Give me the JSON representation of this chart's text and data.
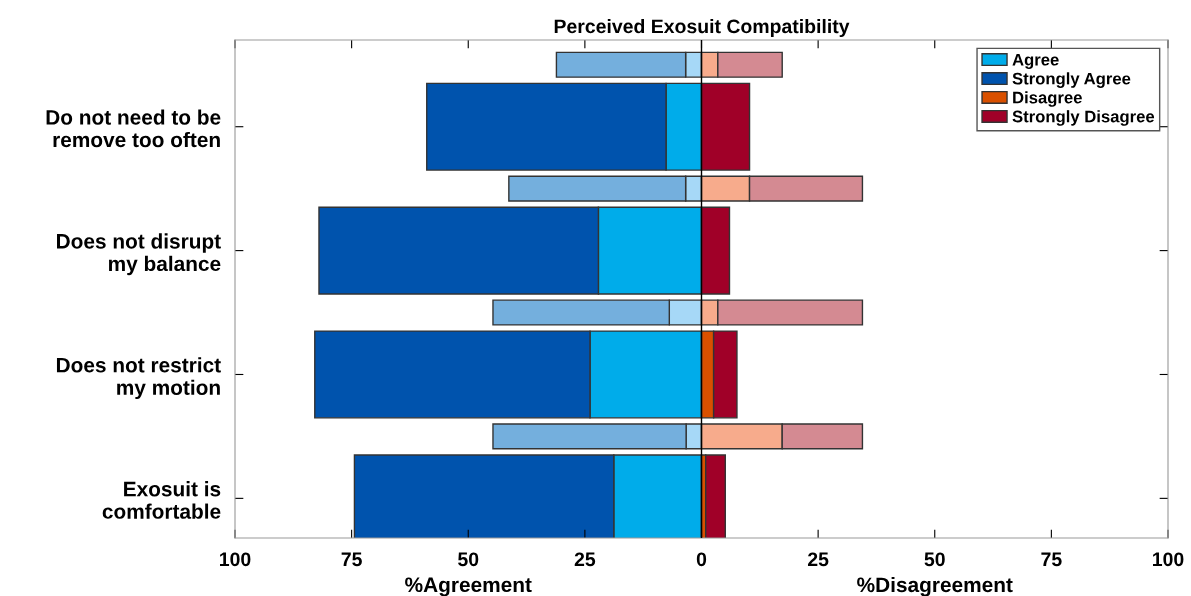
{
  "chart_data": {
    "type": "bar",
    "orientation": "horizontal",
    "stacked": true,
    "title": "Perceived Exosuit Compatibility",
    "categories": [
      null,
      "Do not need to be\nremove too often",
      null,
      "Does not disrupt\nmy balance",
      null,
      "Does not restrict\nmy motion",
      null,
      "Exosuit is\ncomfortable"
    ],
    "series": [
      {
        "name": "Agree",
        "color": "#00acea",
        "values": [
          null,
          -7.6,
          null,
          -22.1,
          null,
          -23.9,
          null,
          -18.8
        ]
      },
      {
        "name": "Strongly Agree",
        "color": "#0053ad",
        "values": [
          null,
          -51.3,
          null,
          -59.9,
          null,
          -59.0,
          null,
          -55.6
        ]
      },
      {
        "name": "Disagree",
        "color": "#d95000",
        "values": [
          null,
          null,
          null,
          null,
          null,
          2.6,
          null,
          0.9
        ]
      },
      {
        "name": "Strongly Disagree",
        "color": "#a00028",
        "values": [
          null,
          10.3,
          null,
          6.0,
          null,
          5.0,
          null,
          4.2
        ]
      },
      {
        "color": "#a6d8f7",
        "values": [
          -3.4,
          null,
          -3.4,
          null,
          -6.9,
          null,
          -3.3,
          null
        ]
      },
      {
        "color": "#74afdd",
        "values": [
          -27.7,
          null,
          -37.9,
          null,
          -37.8,
          null,
          -41.4,
          null
        ]
      },
      {
        "color": "#f7ab8c",
        "values": [
          3.5,
          null,
          10.3,
          null,
          3.5,
          null,
          17.3,
          null
        ]
      },
      {
        "color": "#d48a92",
        "values": [
          13.8,
          null,
          24.2,
          null,
          31.0,
          null,
          17.2,
          null
        ]
      }
    ],
    "xlim": [
      -100,
      100
    ],
    "xticks": [
      {
        "value": -100,
        "label": "100"
      },
      {
        "value": -75,
        "label": "75"
      },
      {
        "value": -50,
        "label": "50"
      },
      {
        "value": -25,
        "label": "25"
      },
      0,
      25,
      50,
      75,
      100
    ],
    "ref_lines": [
      {
        "axis": "x",
        "value": 0,
        "color": "#000000"
      }
    ],
    "annotations": [
      "%Agreement",
      "%Disagreement"
    ],
    "legend": "top right"
  }
}
